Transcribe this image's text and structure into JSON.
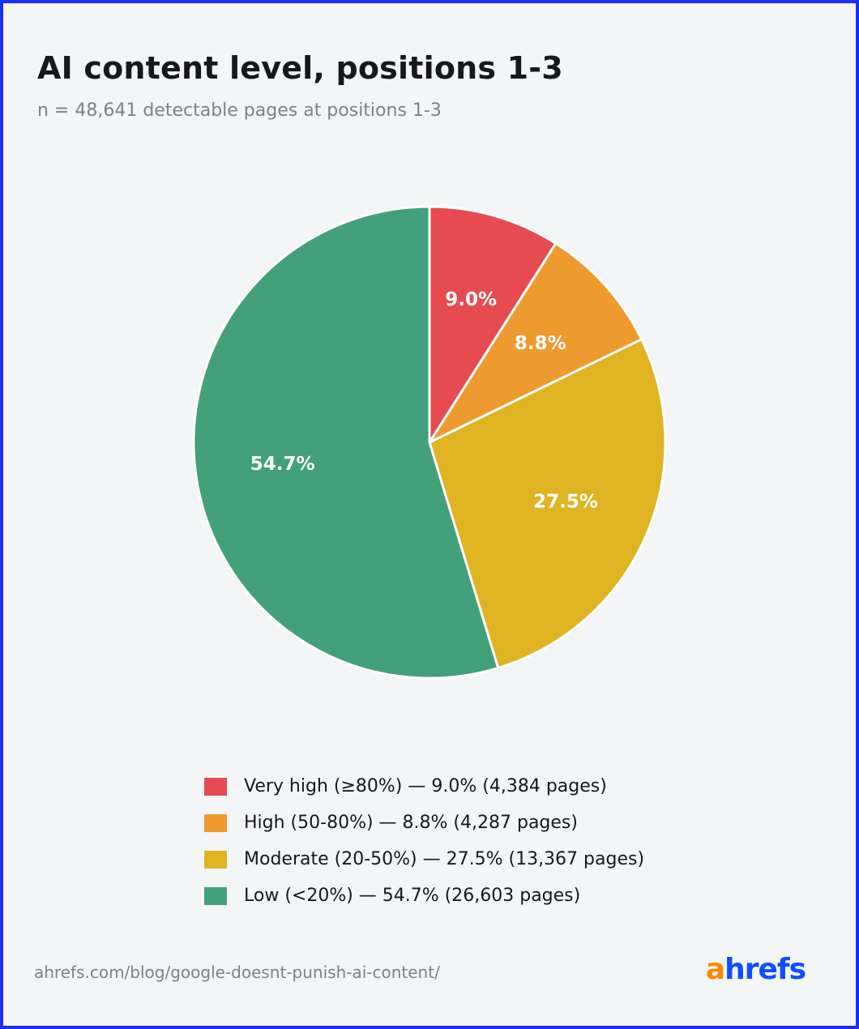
{
  "header": {
    "title": "AI content level, positions 1-3",
    "subtitle": "n = 48,641 detectable pages at positions 1-3"
  },
  "chart_data": {
    "type": "pie",
    "title": "AI content level, positions 1-3",
    "subtitle": "n = 48,641 detectable pages at positions 1-3",
    "legend_position": "bottom",
    "slices": [
      {
        "label": "9.0%",
        "legend": "Very high (≥80%) — 9.0% (4,384 pages)",
        "value": 9.0,
        "pages": 4384,
        "color": "#e64b52"
      },
      {
        "label": "8.8%",
        "legend": "High (50-80%) — 8.8% (4,287 pages)",
        "value": 8.8,
        "pages": 4287,
        "color": "#ef9a2e"
      },
      {
        "label": "27.5%",
        "legend": "Moderate (20-50%) — 27.5% (13,367 pages)",
        "value": 27.5,
        "pages": 13367,
        "color": "#dfb321"
      },
      {
        "label": "54.7%",
        "legend": "Low (<20%) — 54.7% (26,603 pages)",
        "value": 54.7,
        "pages": 26603,
        "color": "#42a07b"
      }
    ]
  },
  "footer": {
    "source": "ahrefs.com/blog/google-doesnt-punish-ai-content/",
    "logo_a": "a",
    "logo_rest": "hrefs"
  }
}
